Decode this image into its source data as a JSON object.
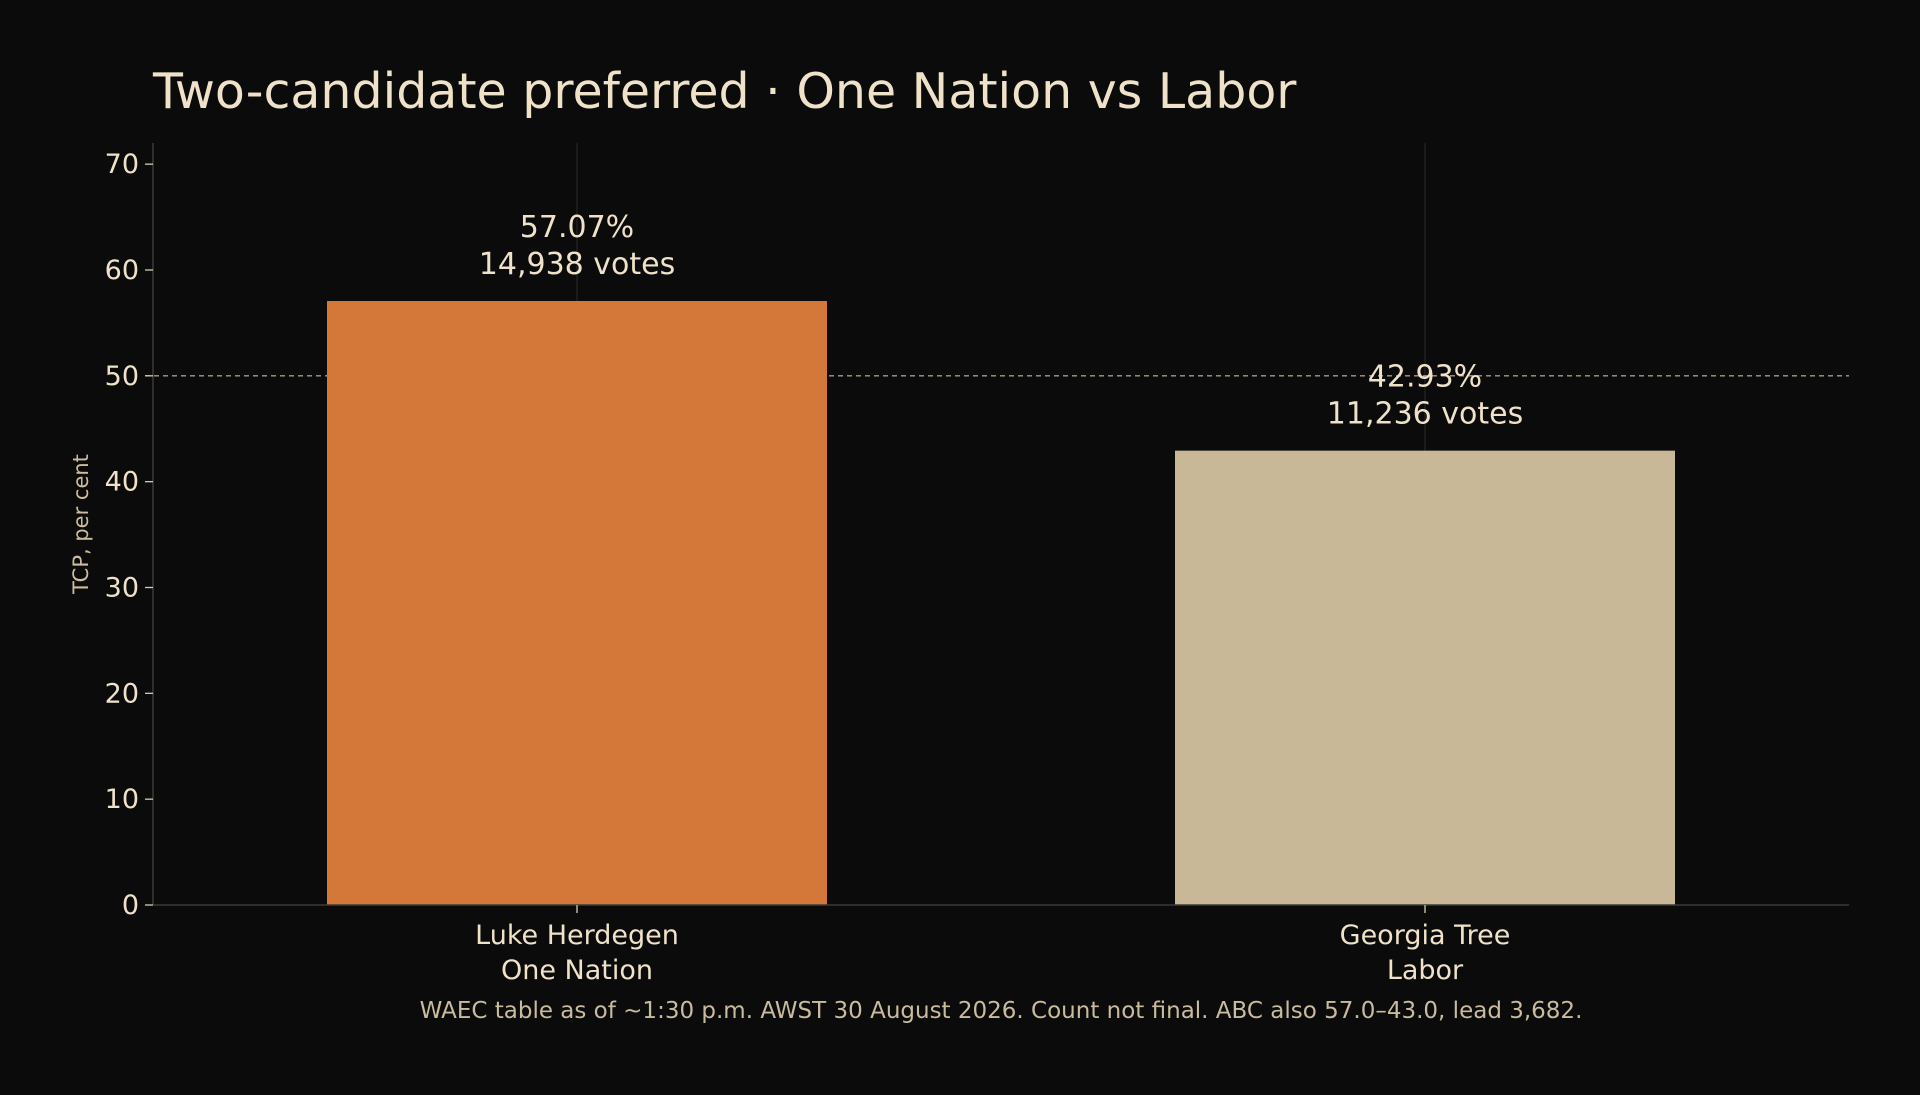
{
  "chart_data": {
    "type": "bar",
    "title": "Two-candidate preferred  ·  One Nation vs Labor",
    "ylabel": "TCP, per cent",
    "xlabel": "",
    "ylim": [
      0,
      72
    ],
    "yticks": [
      0,
      10,
      20,
      30,
      40,
      50,
      60,
      70
    ],
    "grid": "vertical lines at category centres",
    "reference_line": {
      "y": 50,
      "style": "dashed"
    },
    "categories": [
      {
        "candidate": "Luke Herdegen",
        "party": "One Nation"
      },
      {
        "candidate": "Georgia Tree",
        "party": "Labor"
      }
    ],
    "values": [
      57.07,
      42.93
    ],
    "votes": [
      14938,
      11236
    ],
    "data_labels": [
      {
        "pct": "57.07%",
        "votes": "14,938 votes"
      },
      {
        "pct": "42.93%",
        "votes": "11,236 votes"
      }
    ],
    "colors": [
      "#d4783a",
      "#c9b898"
    ],
    "footnote": "WAEC table as of ~1:30 p.m. AWST 30 August 2026. Count not final. ABC also 57.0–43.0, lead 3,682."
  },
  "theme": {
    "background": "#0b0b0b",
    "text": "#efe2c8",
    "axis": "#3a3a3a",
    "grid": "#2a2a2a",
    "reference": "#a89a80"
  }
}
